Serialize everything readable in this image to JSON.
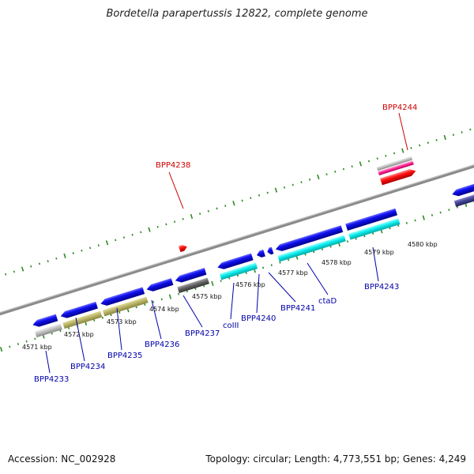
{
  "title": "Bordetella parapertussis 12822, complete genome",
  "footer": {
    "accession": "Accession: NC_002928",
    "stats": "Topology: circular; Length: 4,773,551 bp; Genes: 4,249"
  },
  "colors": {
    "backbone": "#8a8a8a",
    "tick": "#2e8b22",
    "label_blue": "#0000aa",
    "label_red": "#cc0000",
    "gene_blue": "#0a0ae6",
    "gene_cyan": "#11e0e0",
    "gene_khaki": "#bdb86a",
    "gene_gray": "#b8b8b8",
    "gene_dark": "#666666",
    "gene_red": "#ff0000",
    "gene_pink": "#ff2090",
    "gene_navy": "#4a4aa0"
  },
  "kbp_ticks": [
    "4571 kbp",
    "4572 kbp",
    "4573 kbp",
    "4574 kbp",
    "4575 kbp",
    "4576 kbp",
    "4577 kbp",
    "4578 kbp",
    "4579 kbp",
    "4580 kbp"
  ],
  "gene_labels": [
    "BPP4233",
    "BPP4234",
    "BPP4235",
    "BPP4236",
    "BPP4237",
    "coIII",
    "BPP4240",
    "BPP4241",
    "ctaD",
    "BPP4243"
  ],
  "red_labels": [
    "BPP4238",
    "BPP4244"
  ]
}
